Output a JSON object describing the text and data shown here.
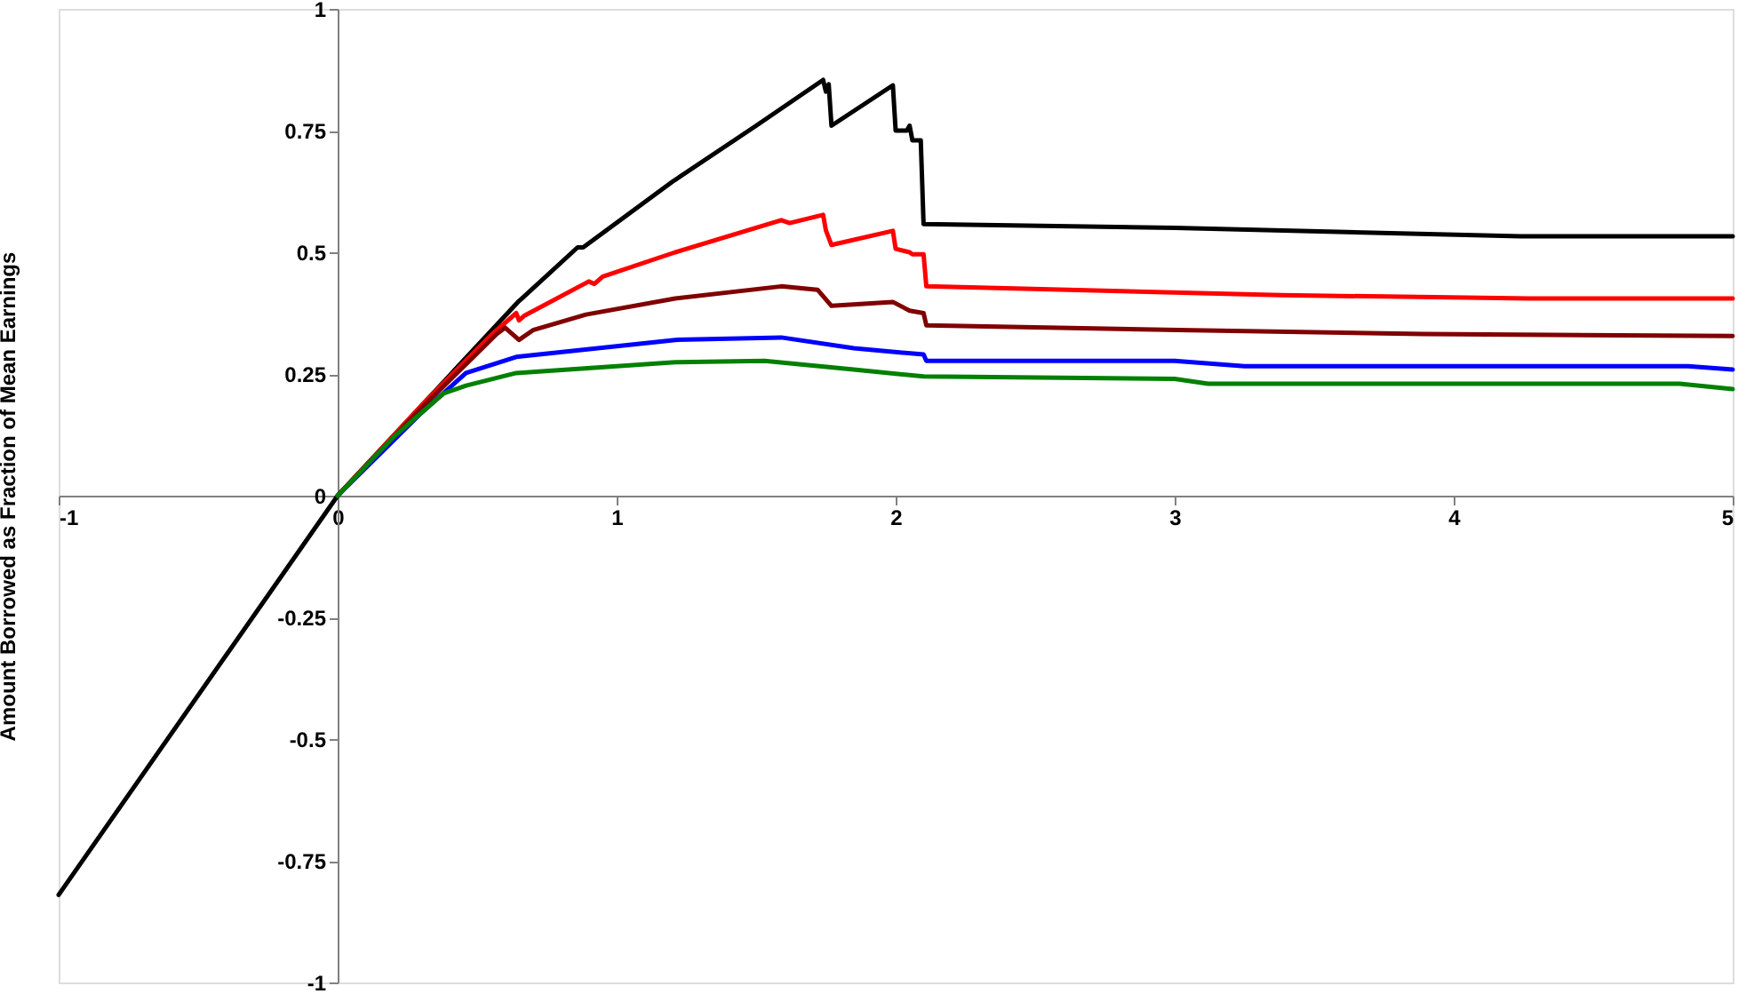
{
  "chart_data": {
    "type": "line",
    "ylabel": "Amount Borrowed as Fraction of Mean Earnings",
    "xlim": [
      -1,
      5
    ],
    "ylim": [
      -1,
      1
    ],
    "xticks": [
      -1,
      0,
      1,
      2,
      3,
      4,
      5
    ],
    "yticks": [
      -1,
      -0.75,
      -0.5,
      -0.25,
      0,
      0.25,
      0.5,
      0.75,
      1
    ],
    "grid": false,
    "marker": "none",
    "line_style": "solid",
    "series": [
      {
        "color": "#000000",
        "x": [
          -1,
          0,
          0.65,
          0.66,
          0.86,
          0.88,
          1.2,
          1.5,
          1.74,
          1.75,
          1.76,
          1.77,
          1.99,
          2.0,
          2.04,
          2.05,
          2.06,
          2.09,
          2.1,
          3.0,
          4.24,
          5
        ],
        "values": [
          -0.82,
          0,
          0.4,
          0.405,
          0.51,
          0.51,
          0.645,
          0.76,
          0.854,
          0.83,
          0.845,
          0.76,
          0.843,
          0.75,
          0.75,
          0.76,
          0.73,
          0.73,
          0.558,
          0.55,
          0.533,
          0.533
        ]
      },
      {
        "color": "#ff0000",
        "x": [
          0,
          0.3,
          0.55,
          0.64,
          0.65,
          0.67,
          0.9,
          0.92,
          0.95,
          1.21,
          1.59,
          1.62,
          1.74,
          1.75,
          1.77,
          1.99,
          2.0,
          2.05,
          2.06,
          2.1,
          2.11,
          3.38,
          4.27,
          5
        ],
        "values": [
          0,
          0.185,
          0.33,
          0.375,
          0.36,
          0.37,
          0.44,
          0.435,
          0.45,
          0.5,
          0.566,
          0.56,
          0.577,
          0.545,
          0.515,
          0.544,
          0.507,
          0.5,
          0.496,
          0.496,
          0.43,
          0.412,
          0.405,
          0.405
        ]
      },
      {
        "color": "#800000",
        "x": [
          0,
          0.3,
          0.57,
          0.6,
          0.65,
          0.7,
          0.89,
          1.21,
          1.59,
          1.72,
          1.77,
          1.99,
          2.05,
          2.1,
          2.11,
          3.06,
          3.89,
          5
        ],
        "values": [
          0,
          0.18,
          0.332,
          0.345,
          0.32,
          0.34,
          0.372,
          0.405,
          0.43,
          0.423,
          0.39,
          0.398,
          0.38,
          0.375,
          0.35,
          0.34,
          0.332,
          0.328
        ]
      },
      {
        "color": "#0000ff",
        "x": [
          0,
          0.3,
          0.46,
          0.64,
          1.21,
          1.59,
          1.85,
          2.1,
          2.11,
          3.0,
          3.25,
          4.84,
          5
        ],
        "values": [
          0,
          0.17,
          0.252,
          0.285,
          0.32,
          0.325,
          0.303,
          0.29,
          0.277,
          0.277,
          0.266,
          0.266,
          0.259
        ]
      },
      {
        "color": "#008000",
        "x": [
          0,
          0.2,
          0.38,
          0.46,
          0.64,
          1.21,
          1.53,
          1.85,
          2.1,
          3.0,
          3.12,
          4.81,
          5
        ],
        "values": [
          0,
          0.12,
          0.21,
          0.226,
          0.252,
          0.274,
          0.277,
          0.259,
          0.245,
          0.24,
          0.23,
          0.23,
          0.219
        ]
      }
    ]
  }
}
